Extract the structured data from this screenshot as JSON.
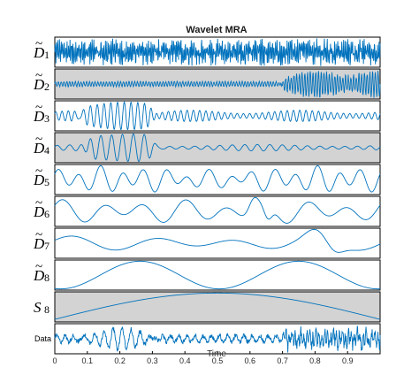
{
  "chart_data": {
    "type": "line",
    "title": "Wavelet MRA",
    "xlabel": "Time",
    "xlim": [
      0,
      1
    ],
    "xticks": [
      "0",
      "0.1",
      "0.2",
      "0.3",
      "0.4",
      "0.5",
      "0.6",
      "0.7",
      "0.8",
      "0.9"
    ],
    "line_color": "#0072BD",
    "shaded_color": "#D3D3D3",
    "series": [
      {
        "name": "D1",
        "label_base": "D",
        "label_sub": "1",
        "tilde": true,
        "shaded": false
      },
      {
        "name": "D2",
        "label_base": "D",
        "label_sub": "2",
        "tilde": true,
        "shaded": true
      },
      {
        "name": "D3",
        "label_base": "D",
        "label_sub": "3",
        "tilde": true,
        "shaded": false
      },
      {
        "name": "D4",
        "label_base": "D",
        "label_sub": "4",
        "tilde": true,
        "shaded": true
      },
      {
        "name": "D5",
        "label_base": "D",
        "label_sub": "5",
        "tilde": true,
        "shaded": false
      },
      {
        "name": "D6",
        "label_base": "D",
        "label_sub": "6",
        "tilde": true,
        "shaded": false
      },
      {
        "name": "D7",
        "label_base": "D",
        "label_sub": "7",
        "tilde": true,
        "shaded": false
      },
      {
        "name": "D8",
        "label_base": "D",
        "label_sub": "8",
        "tilde": true,
        "shaded": false
      },
      {
        "name": "S8",
        "label_base": "S",
        "label_sub": "8",
        "tilde": false,
        "shaded": true
      },
      {
        "name": "Data",
        "label_base": "Data",
        "label_sub": "",
        "tilde": false,
        "shaded": false
      }
    ]
  }
}
